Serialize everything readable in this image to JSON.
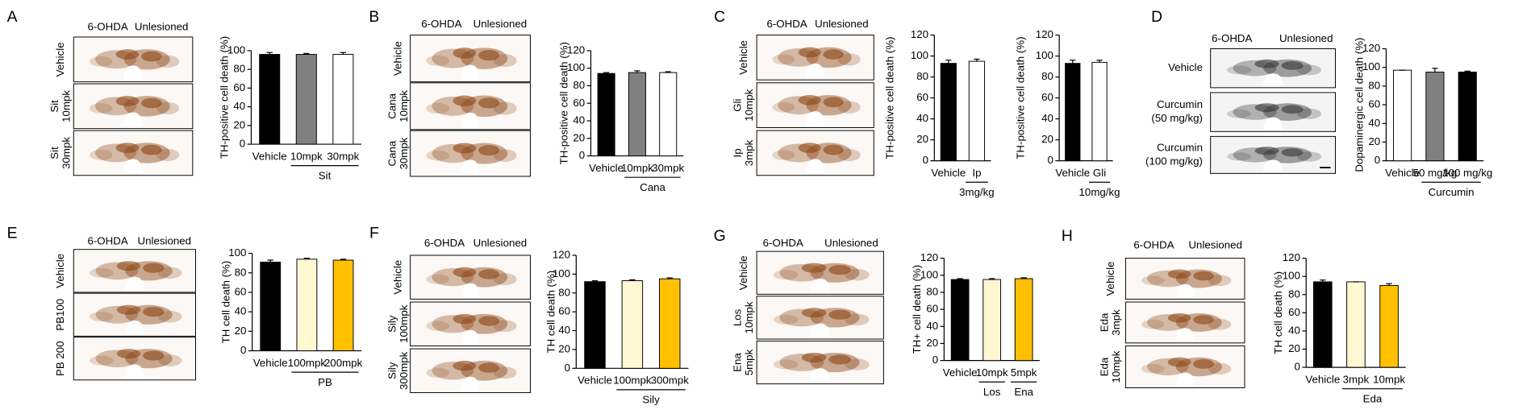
{
  "panels": [
    {
      "letter": "A",
      "headers": [
        "6-OHDA",
        "Unlesioned"
      ],
      "rows": [
        [
          "Vehicle"
        ],
        [
          "Sit",
          "10mpk"
        ],
        [
          "Sit",
          "30mpk"
        ]
      ]
    },
    {
      "letter": "B",
      "headers": [
        "6-OHDA",
        "Unlesioned"
      ],
      "rows": [
        [
          "Vehicle"
        ],
        [
          "Cana",
          "10mpk"
        ],
        [
          "Cana",
          "30mpk"
        ]
      ]
    },
    {
      "letter": "C",
      "headers": [
        "6-OHDA",
        "Unlesioned"
      ],
      "rows": [
        [
          "Vehicle"
        ],
        [
          "Gli",
          "10mpk"
        ],
        [
          "Ip",
          "3mpk"
        ]
      ]
    },
    {
      "letter": "D",
      "headers": [
        "6-OHDA",
        "Unlesioned"
      ],
      "rows": [
        [
          "Vehicle"
        ],
        [
          "Curcumin",
          "(50 mg/kg)"
        ],
        [
          "Curcumin",
          "(100 mg/kg)"
        ]
      ]
    },
    {
      "letter": "E",
      "headers": [
        "6-OHDA",
        "Unlesioned"
      ],
      "rows": [
        [
          "Vehicle"
        ],
        [
          "PB100"
        ],
        [
          "PB 200"
        ]
      ]
    },
    {
      "letter": "F",
      "headers": [
        "6-OHDA",
        "Unlesioned"
      ],
      "rows": [
        [
          "Vehicle"
        ],
        [
          "Sily",
          "100mpk"
        ],
        [
          "Sily",
          "300mpk"
        ]
      ]
    },
    {
      "letter": "G",
      "headers": [
        "6-OHDA",
        "Unlesioned"
      ],
      "rows": [
        [
          "Vehicle"
        ],
        [
          "Los",
          "10mpk"
        ],
        [
          "Ena",
          "5mpk"
        ]
      ]
    },
    {
      "letter": "H",
      "headers": [
        "6-OHDA",
        "Unlesioned"
      ],
      "rows": [
        [
          "Vehicle"
        ],
        [
          "Eda",
          "3mpk"
        ],
        [
          "Eda",
          "10mpk"
        ]
      ]
    }
  ],
  "chart_data": [
    {
      "type": "bar",
      "y_label": "TH-positive  cell death (%)",
      "categories": [
        "Vehicle",
        "10mpk",
        "30mpk"
      ],
      "category_groups": [
        null,
        "Sit",
        "Sit"
      ],
      "values": [
        96,
        96,
        96
      ],
      "errors": [
        2,
        1,
        2
      ],
      "colors": [
        "#000000",
        "#808080",
        "#ffffff"
      ],
      "ylim": [
        0,
        100
      ],
      "yticks": [
        0,
        20,
        40,
        60,
        80,
        100
      ]
    },
    {
      "type": "bar",
      "y_label": "TH-positive  cell death (%)",
      "categories": [
        "Vehicle",
        "10mpk",
        "30mpk"
      ],
      "category_groups": [
        null,
        "Cana",
        "Cana"
      ],
      "values": [
        94,
        95,
        95
      ],
      "errors": [
        1,
        2,
        1
      ],
      "colors": [
        "#000000",
        "#808080",
        "#ffffff"
      ],
      "ylim": [
        0,
        120
      ],
      "yticks": [
        0,
        20,
        40,
        60,
        80,
        100,
        120
      ]
    },
    {
      "type": "bar",
      "y_label": "TH-positive  cell death (%)",
      "categories": [
        "Vehicle",
        "Ip"
      ],
      "category_groups": [
        null,
        "3mg/kg"
      ],
      "values": [
        93,
        95
      ],
      "errors": [
        3,
        2
      ],
      "colors": [
        "#000000",
        "#ffffff"
      ],
      "ylim": [
        0,
        120
      ],
      "yticks": [
        0,
        20,
        40,
        60,
        80,
        100,
        120
      ]
    },
    {
      "type": "bar",
      "y_label": "TH-positive  cell death (%)",
      "categories": [
        "Vehicle",
        "Gli"
      ],
      "category_groups": [
        null,
        "10mg/kg"
      ],
      "values": [
        93,
        94
      ],
      "errors": [
        3,
        2
      ],
      "colors": [
        "#000000",
        "#ffffff"
      ],
      "ylim": [
        0,
        120
      ],
      "yticks": [
        0,
        20,
        40,
        60,
        80,
        100,
        120
      ]
    },
    {
      "type": "bar",
      "y_label": "Dopaminergic cell death (%)",
      "categories": [
        "Vehicle",
        "50 mg/kg",
        "100 mg/kg"
      ],
      "category_groups": [
        null,
        "Curcumin",
        "Curcumin"
      ],
      "values": [
        97,
        95,
        95
      ],
      "errors": [
        0,
        4,
        1
      ],
      "colors": [
        "#ffffff",
        "#808080",
        "#000000"
      ],
      "ylim": [
        0,
        120
      ],
      "yticks": [
        0,
        20,
        40,
        60,
        80,
        100,
        120
      ]
    },
    {
      "type": "bar",
      "y_label": "TH cell death (%)",
      "categories": [
        "Vehicle",
        "100mpk",
        "200mpk"
      ],
      "category_groups": [
        null,
        "PB",
        "PB"
      ],
      "values": [
        91,
        94,
        93
      ],
      "errors": [
        2,
        1,
        1
      ],
      "colors": [
        "#000000",
        "#fff8d2",
        "#ffc000"
      ],
      "ylim": [
        0,
        100
      ],
      "yticks": [
        0,
        20,
        40,
        60,
        80,
        100
      ]
    },
    {
      "type": "bar",
      "y_label": "TH cell death (%)",
      "categories": [
        "Vehicle",
        "100mpk",
        "300mpk"
      ],
      "category_groups": [
        null,
        "Sily",
        "Sily"
      ],
      "values": [
        92,
        93,
        95
      ],
      "errors": [
        1,
        1,
        1
      ],
      "colors": [
        "#000000",
        "#fff8d2",
        "#ffc000"
      ],
      "ylim": [
        0,
        120
      ],
      "yticks": [
        0,
        20,
        40,
        60,
        80,
        100,
        120
      ]
    },
    {
      "type": "bar",
      "y_label": "TH+ cell death (%)",
      "categories": [
        "Vehicle",
        "10mpk",
        "5mpk"
      ],
      "category_groups": [
        null,
        "Los",
        "Ena"
      ],
      "values": [
        95,
        95,
        96
      ],
      "errors": [
        1,
        1,
        1
      ],
      "colors": [
        "#000000",
        "#fff8d2",
        "#ffc000"
      ],
      "ylim": [
        0,
        120
      ],
      "yticks": [
        0,
        20,
        40,
        60,
        80,
        100,
        120
      ]
    },
    {
      "type": "bar",
      "y_label": "TH cell death (%)",
      "categories": [
        "Vehicle",
        "3mpk",
        "10mpk"
      ],
      "category_groups": [
        null,
        "Eda",
        "Eda"
      ],
      "values": [
        94,
        94,
        90
      ],
      "errors": [
        2,
        0,
        2
      ],
      "colors": [
        "#000000",
        "#fff8d2",
        "#ffc000"
      ],
      "ylim": [
        0,
        120
      ],
      "yticks": [
        0,
        20,
        40,
        60,
        80,
        100,
        120
      ]
    }
  ]
}
